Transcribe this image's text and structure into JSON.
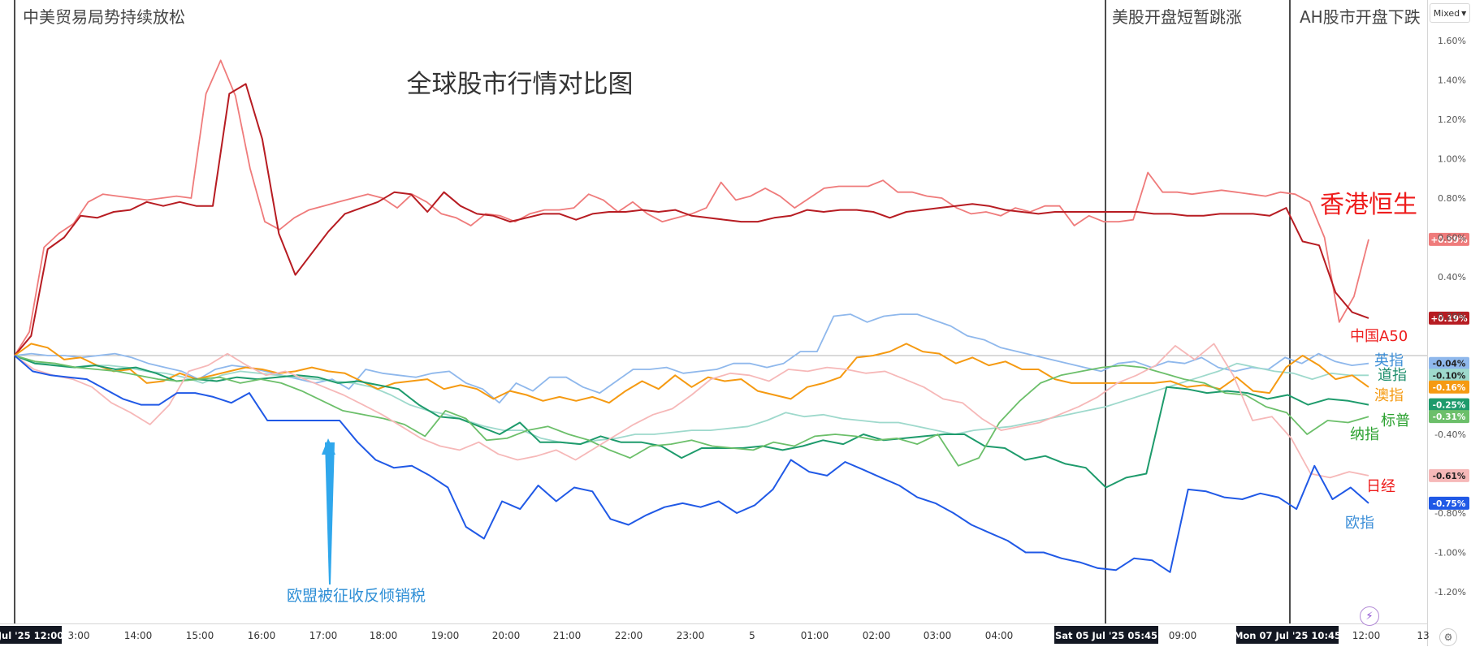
{
  "title": "全球股市行情对比图",
  "controls": {
    "scale_mode": "Mixed",
    "flash_icon": "lightning-icon",
    "settings_icon": "gear-icon"
  },
  "events": [
    {
      "label": "中美贸易局势持续放松"
    },
    {
      "label": "美股开盘短暂跳涨"
    },
    {
      "label": "AH股市开盘下跌"
    }
  ],
  "annotation": {
    "label": "欧盟被征收反倾销税"
  },
  "x_axis": {
    "ticks": [
      "3:00",
      "14:00",
      "15:00",
      "16:00",
      "17:00",
      "18:00",
      "19:00",
      "20:00",
      "21:00",
      "22:00",
      "23:00",
      "5",
      "01:00",
      "02:00",
      "03:00",
      "04:00",
      "09:00",
      "12:00",
      "13"
    ],
    "highlighted": [
      "Jul '25  12:00",
      "Sat 05 Jul '25  05:45",
      "Mon 07 Jul '25  10:45"
    ]
  },
  "chart_data": {
    "type": "line",
    "title": "全球股市行情对比图",
    "y_axis_unit": "%",
    "y_ticks": [
      "1.60%",
      "1.40%",
      "1.20%",
      "1.00%",
      "0.80%",
      "0.60%",
      "0.40%",
      "0.20%",
      "-0.40%",
      "-0.80%",
      "-1.00%",
      "-1.20%"
    ],
    "ylim": [
      -1.32,
      1.68
    ],
    "series": [
      {
        "name": "香港恒生",
        "color": "#ef7b7b",
        "last": "+0.59%",
        "labelColor": "#ee1c1c",
        "values": [
          0,
          0.12,
          0.55,
          0.62,
          0.67,
          0.78,
          0.82,
          0.81,
          0.8,
          0.79,
          0.8,
          0.81,
          0.8,
          1.33,
          1.5,
          1.32,
          0.95,
          0.68,
          0.64,
          0.7,
          0.74,
          0.76,
          0.78,
          0.8,
          0.82,
          0.8,
          0.75,
          0.82,
          0.78,
          0.72,
          0.7,
          0.66,
          0.72,
          0.71,
          0.68,
          0.72,
          0.74,
          0.74,
          0.75,
          0.82,
          0.79,
          0.73,
          0.78,
          0.72,
          0.68,
          0.7,
          0.72,
          0.75,
          0.88,
          0.79,
          0.81,
          0.85,
          0.81,
          0.75,
          0.8,
          0.85,
          0.86,
          0.86,
          0.86,
          0.89,
          0.83,
          0.83,
          0.81,
          0.8,
          0.75,
          0.72,
          0.73,
          0.71,
          0.75,
          0.73,
          0.76,
          0.76,
          0.66,
          0.71,
          0.68,
          0.68,
          0.69,
          0.93,
          0.83,
          0.83,
          0.82,
          0.83,
          0.84,
          0.83,
          0.82,
          0.81,
          0.83,
          0.82,
          0.78,
          0.6,
          0.17,
          0.3,
          0.59
        ]
      },
      {
        "name": "中国A50",
        "color": "#b71c22",
        "last": "+0.19%",
        "labelColor": "#ee1c1c",
        "values": [
          0,
          0.1,
          0.54,
          0.6,
          0.71,
          0.7,
          0.73,
          0.74,
          0.78,
          0.76,
          0.78,
          0.76,
          0.76,
          1.33,
          1.38,
          1.1,
          0.62,
          0.41,
          0.52,
          0.63,
          0.72,
          0.75,
          0.78,
          0.83,
          0.82,
          0.73,
          0.83,
          0.76,
          0.72,
          0.71,
          0.68,
          0.7,
          0.72,
          0.72,
          0.69,
          0.72,
          0.73,
          0.73,
          0.74,
          0.73,
          0.74,
          0.71,
          0.7,
          0.69,
          0.68,
          0.68,
          0.7,
          0.71,
          0.74,
          0.73,
          0.74,
          0.74,
          0.73,
          0.7,
          0.73,
          0.74,
          0.75,
          0.76,
          0.77,
          0.76,
          0.74,
          0.73,
          0.72,
          0.73,
          0.73,
          0.73,
          0.73,
          0.73,
          0.73,
          0.72,
          0.72,
          0.71,
          0.71,
          0.72,
          0.72,
          0.72,
          0.71,
          0.75,
          0.58,
          0.56,
          0.32,
          0.22,
          0.19
        ]
      },
      {
        "name": "英指",
        "color": "#8fb8ec",
        "last": "-0.04%",
        "labelColor": "#3d8fd8",
        "values": [
          0,
          0.01,
          0.0,
          0.0,
          -0.01,
          0.0,
          0.01,
          -0.01,
          -0.04,
          -0.06,
          -0.08,
          -0.12,
          -0.07,
          -0.05,
          -0.06,
          -0.08,
          -0.1,
          -0.12,
          -0.14,
          -0.12,
          -0.17,
          -0.07,
          -0.09,
          -0.1,
          -0.11,
          -0.09,
          -0.08,
          -0.14,
          -0.17,
          -0.24,
          -0.14,
          -0.18,
          -0.11,
          -0.11,
          -0.16,
          -0.19,
          -0.13,
          -0.07,
          -0.07,
          -0.06,
          -0.09,
          -0.08,
          -0.07,
          -0.04,
          -0.04,
          -0.06,
          -0.04,
          0.02,
          0.02,
          0.2,
          0.21,
          0.17,
          0.2,
          0.21,
          0.21,
          0.18,
          0.15,
          0.1,
          0.08,
          0.04,
          0.02,
          0.0,
          -0.02,
          -0.04,
          -0.06,
          -0.08,
          -0.04,
          -0.03,
          -0.06,
          -0.03,
          -0.04,
          -0.01,
          -0.06,
          -0.08,
          -0.06,
          -0.07,
          -0.01,
          -0.04,
          0.01,
          -0.03,
          -0.05,
          -0.04
        ]
      },
      {
        "name": "道指",
        "color": "#9ed9cc",
        "last": "-0.10%",
        "labelColor": "#1e8e6c",
        "values": [
          0,
          -0.03,
          -0.05,
          -0.06,
          -0.05,
          -0.05,
          -0.06,
          -0.08,
          -0.09,
          -0.11,
          -0.14,
          -0.1,
          -0.08,
          -0.09,
          -0.1,
          -0.11,
          -0.12,
          -0.13,
          -0.14,
          -0.16,
          -0.2,
          -0.25,
          -0.28,
          -0.3,
          -0.33,
          -0.36,
          -0.38,
          -0.38,
          -0.42,
          -0.44,
          -0.45,
          -0.43,
          -0.42,
          -0.4,
          -0.4,
          -0.39,
          -0.38,
          -0.38,
          -0.37,
          -0.36,
          -0.33,
          -0.29,
          -0.31,
          -0.3,
          -0.32,
          -0.33,
          -0.34,
          -0.34,
          -0.36,
          -0.38,
          -0.4,
          -0.38,
          -0.37,
          -0.36,
          -0.34,
          -0.32,
          -0.3,
          -0.28,
          -0.26,
          -0.23,
          -0.2,
          -0.17,
          -0.14,
          -0.11,
          -0.08,
          -0.04,
          -0.06,
          -0.08,
          -0.09,
          -0.12,
          -0.09,
          -0.1,
          -0.1
        ]
      },
      {
        "name": "澳指",
        "color": "#f59a12",
        "last": "-0.16%",
        "labelColor": "#f59a12",
        "values": [
          0,
          0.06,
          0.04,
          -0.02,
          -0.01,
          -0.05,
          -0.08,
          -0.07,
          -0.14,
          -0.13,
          -0.09,
          -0.12,
          -0.1,
          -0.08,
          -0.06,
          -0.07,
          -0.09,
          -0.08,
          -0.06,
          -0.08,
          -0.09,
          -0.13,
          -0.17,
          -0.14,
          -0.13,
          -0.12,
          -0.17,
          -0.15,
          -0.17,
          -0.22,
          -0.18,
          -0.2,
          -0.23,
          -0.21,
          -0.23,
          -0.21,
          -0.24,
          -0.18,
          -0.13,
          -0.17,
          -0.1,
          -0.16,
          -0.11,
          -0.13,
          -0.12,
          -0.18,
          -0.2,
          -0.22,
          -0.16,
          -0.14,
          -0.11,
          -0.01,
          0.0,
          0.02,
          0.06,
          0.02,
          0.01,
          -0.04,
          -0.01,
          -0.05,
          -0.03,
          -0.07,
          -0.07,
          -0.12,
          -0.14,
          -0.14,
          -0.14,
          -0.14,
          -0.14,
          -0.14,
          -0.13,
          -0.16,
          -0.15,
          -0.17,
          -0.11,
          -0.18,
          -0.19,
          -0.06,
          0.0,
          -0.05,
          -0.12,
          -0.1,
          -0.16
        ]
      },
      {
        "name": "标普",
        "color": "#1e9b6c",
        "last": "-0.25%",
        "labelColor": "#2aa12f",
        "values": [
          0,
          -0.04,
          -0.05,
          -0.06,
          -0.05,
          -0.07,
          -0.06,
          -0.09,
          -0.13,
          -0.12,
          -0.13,
          -0.11,
          -0.12,
          -0.11,
          -0.1,
          -0.11,
          -0.14,
          -0.13,
          -0.15,
          -0.17,
          -0.25,
          -0.31,
          -0.32,
          -0.36,
          -0.4,
          -0.34,
          -0.44,
          -0.44,
          -0.45,
          -0.41,
          -0.44,
          -0.44,
          -0.46,
          -0.52,
          -0.47,
          -0.47,
          -0.47,
          -0.46,
          -0.48,
          -0.46,
          -0.43,
          -0.45,
          -0.4,
          -0.43,
          -0.42,
          -0.41,
          -0.4,
          -0.4,
          -0.46,
          -0.47,
          -0.53,
          -0.51,
          -0.55,
          -0.57,
          -0.67,
          -0.62,
          -0.6,
          -0.16,
          -0.17,
          -0.19,
          -0.18,
          -0.19,
          -0.22,
          -0.2,
          -0.25,
          -0.22,
          -0.23,
          -0.25
        ]
      },
      {
        "name": "纳指",
        "color": "#6cbf6a",
        "last": "-0.31%",
        "labelColor": "#2aa12f",
        "values": [
          0,
          -0.03,
          -0.04,
          -0.06,
          -0.07,
          -0.08,
          -0.1,
          -0.12,
          -0.13,
          -0.12,
          -0.11,
          -0.14,
          -0.12,
          -0.14,
          -0.18,
          -0.23,
          -0.28,
          -0.3,
          -0.32,
          -0.35,
          -0.41,
          -0.28,
          -0.32,
          -0.43,
          -0.42,
          -0.38,
          -0.36,
          -0.4,
          -0.43,
          -0.48,
          -0.52,
          -0.46,
          -0.45,
          -0.43,
          -0.46,
          -0.47,
          -0.48,
          -0.44,
          -0.46,
          -0.41,
          -0.4,
          -0.41,
          -0.43,
          -0.42,
          -0.45,
          -0.4,
          -0.56,
          -0.52,
          -0.34,
          -0.23,
          -0.14,
          -0.1,
          -0.08,
          -0.06,
          -0.05,
          -0.06,
          -0.09,
          -0.12,
          -0.14,
          -0.19,
          -0.2,
          -0.26,
          -0.29,
          -0.4,
          -0.33,
          -0.34,
          -0.31
        ]
      },
      {
        "name": "日经",
        "color": "#f6b8b8",
        "last": "-0.61%",
        "labelColor": "#ee1c1c",
        "values": [
          0,
          -0.07,
          -0.1,
          -0.12,
          -0.16,
          -0.24,
          -0.29,
          -0.35,
          -0.25,
          -0.08,
          -0.05,
          0.01,
          -0.05,
          -0.1,
          -0.08,
          -0.12,
          -0.16,
          -0.2,
          -0.25,
          -0.3,
          -0.36,
          -0.42,
          -0.46,
          -0.48,
          -0.44,
          -0.5,
          -0.53,
          -0.51,
          -0.48,
          -0.53,
          -0.47,
          -0.41,
          -0.35,
          -0.3,
          -0.27,
          -0.2,
          -0.12,
          -0.09,
          -0.1,
          -0.13,
          -0.07,
          -0.08,
          -0.06,
          -0.07,
          -0.09,
          -0.08,
          -0.12,
          -0.16,
          -0.22,
          -0.24,
          -0.32,
          -0.38,
          -0.36,
          -0.34,
          -0.3,
          -0.26,
          -0.21,
          -0.14,
          -0.1,
          -0.05,
          0.05,
          -0.02,
          0.06,
          -0.1,
          -0.33,
          -0.31,
          -0.42,
          -0.6,
          -0.62,
          -0.59,
          -0.61
        ]
      },
      {
        "name": "欧指",
        "color": "#2059e6",
        "last": "-0.75%",
        "labelColor": "#3d8fd8",
        "values": [
          0,
          -0.08,
          -0.1,
          -0.11,
          -0.12,
          -0.17,
          -0.22,
          -0.25,
          -0.25,
          -0.19,
          -0.19,
          -0.21,
          -0.24,
          -0.19,
          -0.33,
          -0.33,
          -0.33,
          -0.33,
          -0.33,
          -0.44,
          -0.53,
          -0.57,
          -0.56,
          -0.61,
          -0.67,
          -0.87,
          -0.93,
          -0.74,
          -0.78,
          -0.66,
          -0.74,
          -0.67,
          -0.69,
          -0.83,
          -0.86,
          -0.81,
          -0.77,
          -0.75,
          -0.77,
          -0.74,
          -0.8,
          -0.76,
          -0.68,
          -0.53,
          -0.59,
          -0.61,
          -0.54,
          -0.58,
          -0.62,
          -0.66,
          -0.72,
          -0.75,
          -0.8,
          -0.86,
          -0.9,
          -0.94,
          -1.0,
          -1.0,
          -1.03,
          -1.05,
          -1.08,
          -1.09,
          -1.03,
          -1.04,
          -1.1,
          -0.68,
          -0.69,
          -0.72,
          -0.73,
          -0.7,
          -0.72,
          -0.78,
          -0.56,
          -0.73,
          -0.67,
          -0.75
        ]
      }
    ]
  }
}
